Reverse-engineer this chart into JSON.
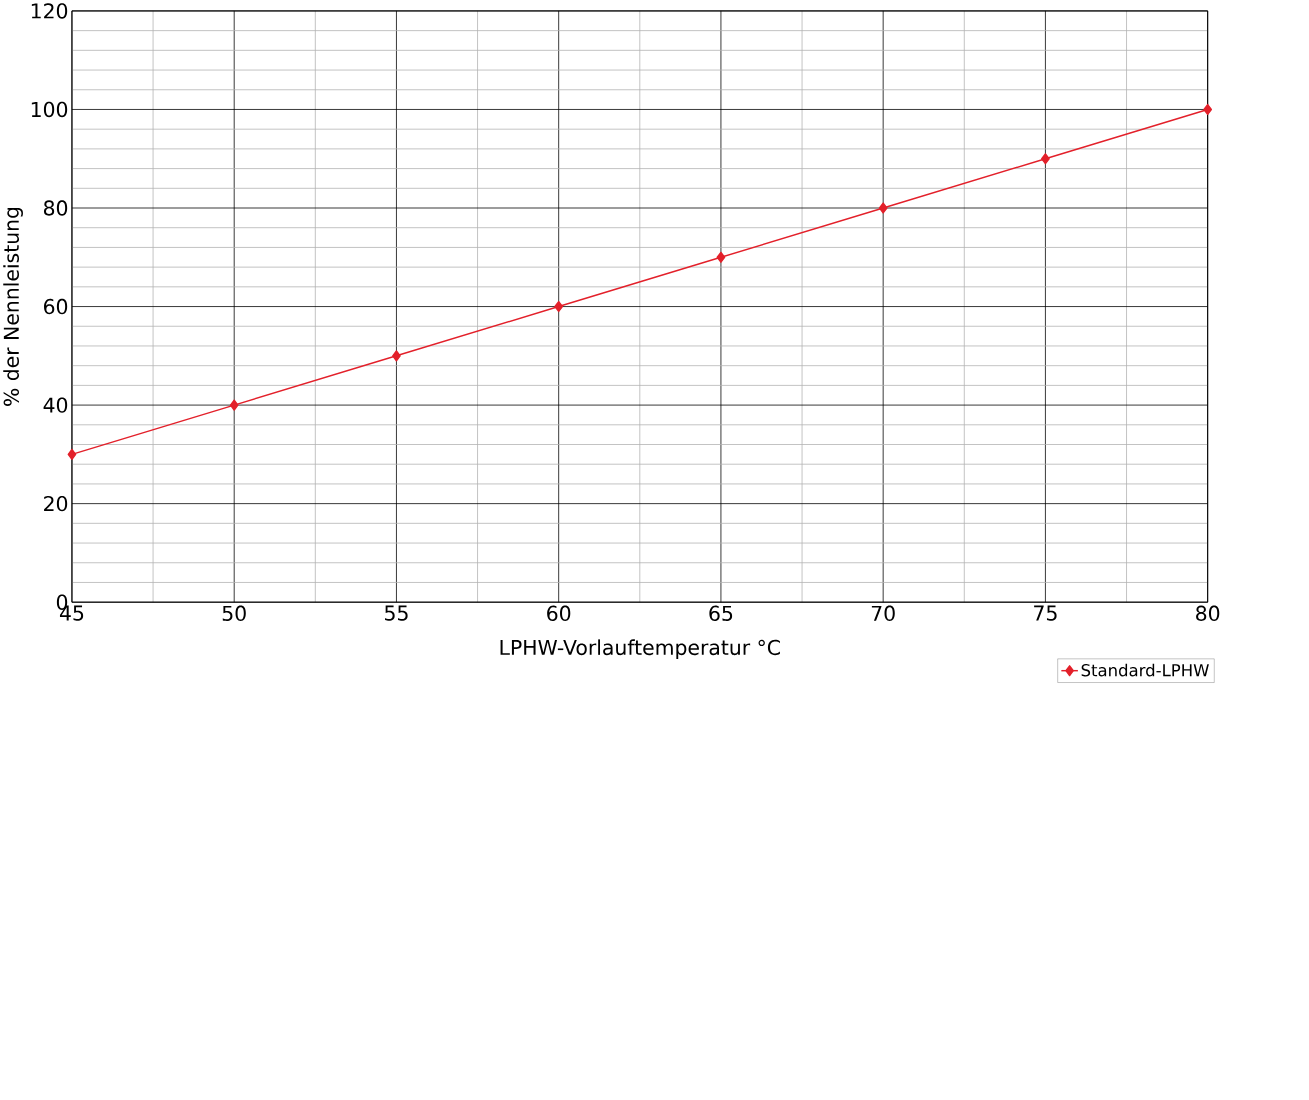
{
  "chart_data": {
    "type": "line",
    "xlabel": "LPHW-Vorlauftemperatur °C",
    "ylabel": "% der Nennleistung",
    "x": [
      45,
      50,
      55,
      60,
      65,
      70,
      75,
      80
    ],
    "series": [
      {
        "name": "Standard-LPHW",
        "color": "#e3202a",
        "values": [
          30,
          40,
          50,
          60,
          70,
          80,
          90,
          100
        ]
      }
    ],
    "xlim": [
      45,
      80
    ],
    "ylim": [
      0,
      120
    ],
    "xticks": [
      45,
      50,
      55,
      60,
      65,
      70,
      75,
      80
    ],
    "yticks": [
      0,
      20,
      40,
      60,
      80,
      100,
      120
    ],
    "grid": true,
    "legend": "bottom right",
    "marker": "diamond",
    "line_style": "solid"
  }
}
